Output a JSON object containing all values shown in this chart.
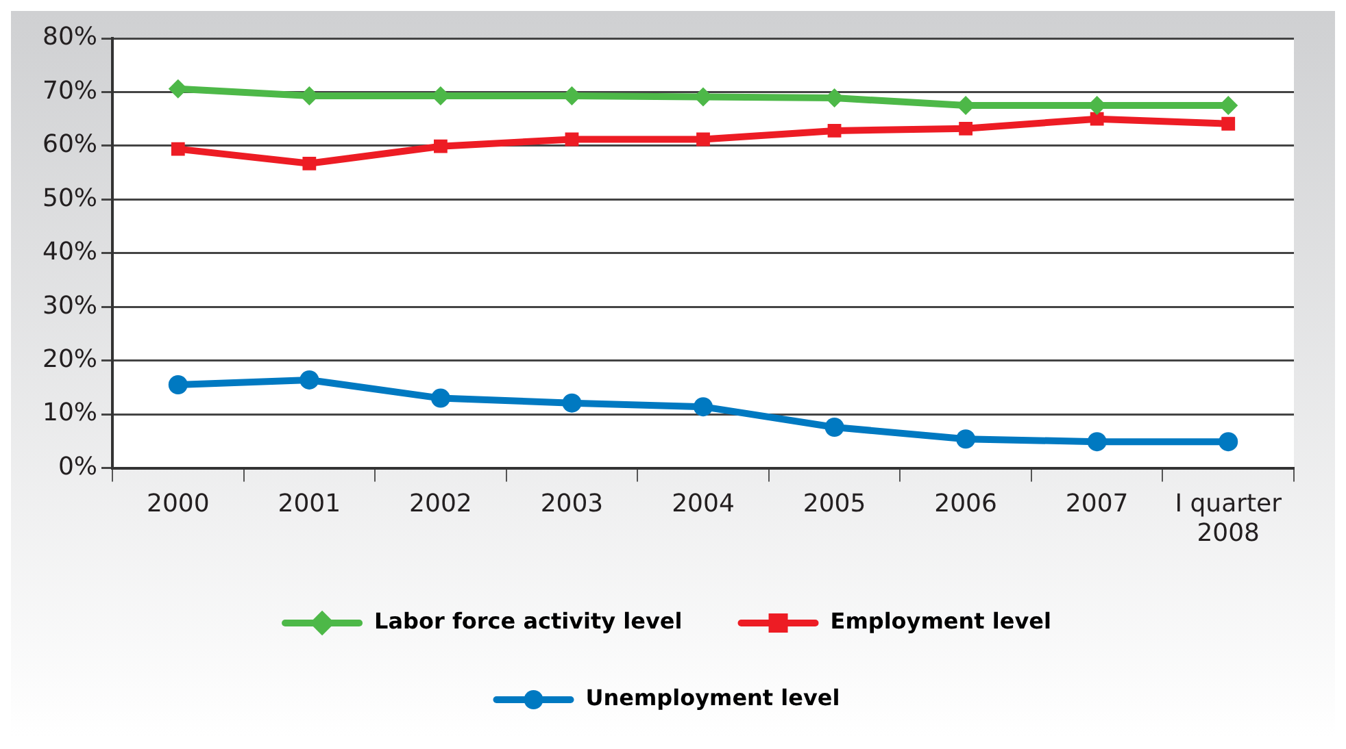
{
  "chart_data": {
    "type": "line",
    "categories": [
      "2000",
      "2001",
      "2002",
      "2003",
      "2004",
      "2005",
      "2006",
      "2007",
      "I quarter\n2008"
    ],
    "series": [
      {
        "name": "Labor force activity level",
        "color": "#4db848",
        "marker": "diamond",
        "values": [
          70.6,
          69.3,
          69.3,
          69.3,
          69.1,
          68.9,
          67.5,
          67.5,
          67.5
        ]
      },
      {
        "name": "Employment level",
        "color": "#ed1c24",
        "marker": "square",
        "values": [
          59.4,
          56.7,
          59.9,
          61.2,
          61.2,
          62.8,
          63.2,
          65.0,
          64.1
        ]
      },
      {
        "name": "Unemployment level",
        "color": "#0079c1",
        "marker": "circle",
        "values": [
          15.5,
          16.4,
          13.0,
          12.1,
          11.4,
          7.6,
          5.4,
          4.9,
          4.9
        ]
      }
    ],
    "ylim": [
      0,
      80
    ],
    "yticks": [
      {
        "value": 0,
        "label": "0%"
      },
      {
        "value": 10,
        "label": "10%"
      },
      {
        "value": 20,
        "label": "20%"
      },
      {
        "value": 30,
        "label": "30%"
      },
      {
        "value": 40,
        "label": "40%"
      },
      {
        "value": 50,
        "label": "50%"
      },
      {
        "value": 60,
        "label": "60%"
      },
      {
        "value": 70,
        "label": "70%"
      },
      {
        "value": 80,
        "label": "80%"
      }
    ],
    "grid": "y",
    "legend": "bottom",
    "line_style": "solid"
  }
}
